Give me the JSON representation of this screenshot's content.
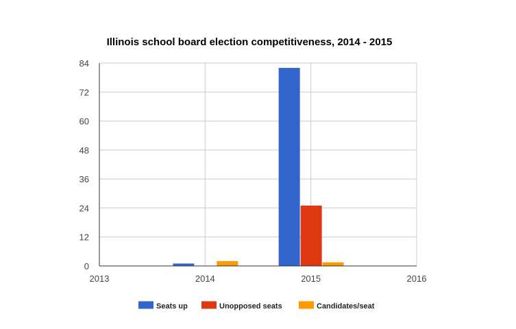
{
  "chart_data": {
    "type": "bar",
    "title": "Illinois school board election competitiveness, 2014 - 2015",
    "xlabel": "",
    "ylabel": "",
    "x_ticks": [
      "2013",
      "2014",
      "2015",
      "2016"
    ],
    "y_ticks": [
      0,
      12,
      24,
      36,
      48,
      60,
      72,
      84
    ],
    "xlim": [
      2013,
      2016
    ],
    "ylim": [
      0,
      84
    ],
    "grid": true,
    "legend_position": "bottom",
    "categories": [
      "2014",
      "2015"
    ],
    "series": [
      {
        "name": "Seats up",
        "color": "#3366cc",
        "values": [
          1,
          82
        ]
      },
      {
        "name": "Unopposed seats",
        "color": "#dc3912",
        "values": [
          0,
          25
        ]
      },
      {
        "name": "Candidates/seat",
        "color": "#ff9900",
        "values": [
          2,
          1.5
        ]
      }
    ]
  }
}
